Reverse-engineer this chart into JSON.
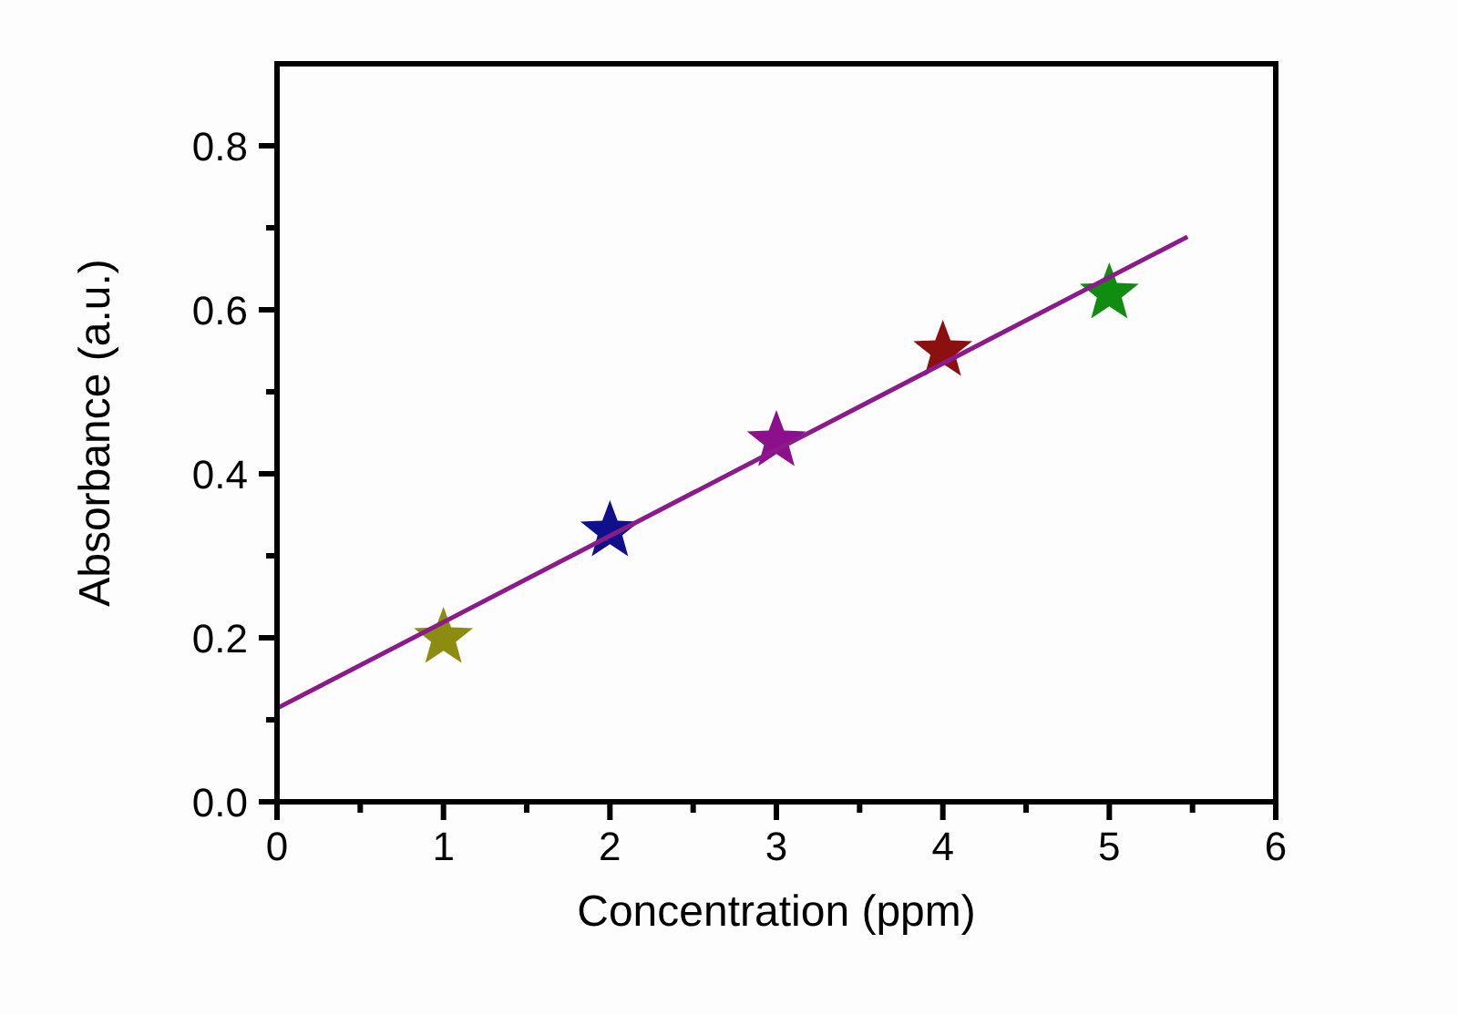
{
  "chart_data": {
    "type": "scatter",
    "xlabel": "Concentration (ppm)",
    "ylabel": "Absorbance (a.u.)",
    "xlim": [
      0,
      6
    ],
    "ylim": [
      0,
      0.9
    ],
    "xticks": [
      0,
      {
        "value": 0.5,
        "label": null
      },
      1,
      {
        "value": 1.5,
        "label": null
      },
      2,
      {
        "value": 2.5,
        "label": null
      },
      3,
      {
        "value": 3.5,
        "label": null
      },
      4,
      {
        "value": 4.5,
        "label": null
      },
      5,
      {
        "value": 5.5,
        "label": null
      },
      6
    ],
    "yticks": [
      {
        "value": 0,
        "label": "0.0"
      },
      {
        "value": 0.1,
        "label": null
      },
      0.2,
      {
        "value": 0.3,
        "label": null
      },
      0.4,
      {
        "value": 0.5,
        "label": null
      },
      0.6,
      {
        "value": 0.7,
        "label": null
      },
      0.8
    ],
    "marker": "star",
    "grid": false,
    "series": [
      {
        "x": [
          1,
          2,
          3,
          4,
          5
        ],
        "values": [
          0.2,
          0.33,
          0.44,
          0.55,
          0.62
        ],
        "colors": [
          "#8c8c10",
          "#10108c",
          "#8c108c",
          "#8c1010",
          "#108c10"
        ]
      },
      {
        "type": "line",
        "x": [
          0,
          5.47
        ],
        "values": [
          0.114,
          0.689
        ],
        "color": "#8b1a8b",
        "marker": "none",
        "line_style": "solid"
      }
    ]
  }
}
